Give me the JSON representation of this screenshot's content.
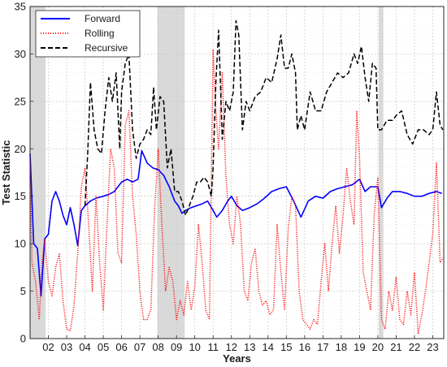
{
  "chart_data": {
    "type": "line",
    "title": "",
    "xlabel": "Years",
    "ylabel": "Test Statistic",
    "xlim": [
      2001.0,
      2023.6
    ],
    "ylim": [
      0,
      35
    ],
    "grid": true,
    "legend_position": "top-left",
    "x_ticks": [
      2002,
      2003,
      2004,
      2005,
      2006,
      2007,
      2008,
      2009,
      2010,
      2011,
      2012,
      2013,
      2014,
      2015,
      2016,
      2017,
      2018,
      2019,
      2020,
      2021,
      2022,
      2023
    ],
    "x_tick_labels": [
      "02",
      "03",
      "04",
      "05",
      "06",
      "07",
      "08",
      "09",
      "10",
      "11",
      "12",
      "13",
      "14",
      "15",
      "16",
      "17",
      "18",
      "19",
      "20",
      "21",
      "22",
      "23"
    ],
    "y_ticks": [
      0,
      5,
      10,
      15,
      20,
      25,
      30,
      35
    ],
    "y_tick_labels": [
      "0",
      "5",
      "10",
      "15",
      "20",
      "25",
      "30",
      "35"
    ],
    "shaded_periods": [
      [
        2001.0,
        2001.85
      ],
      [
        2007.95,
        2009.45
      ],
      [
        2020.05,
        2020.3
      ]
    ],
    "series": [
      {
        "name": "Forward",
        "color": "#0000ff",
        "style": "solid",
        "x": [
          2001.0,
          2001.2,
          2001.4,
          2001.6,
          2001.8,
          2002.0,
          2002.2,
          2002.4,
          2002.6,
          2002.8,
          2003.0,
          2003.2,
          2003.4,
          2003.6,
          2003.8,
          2004.0,
          2004.3,
          2004.6,
          2005.0,
          2005.3,
          2005.6,
          2006.0,
          2006.3,
          2006.6,
          2006.9,
          2007.1,
          2007.4,
          2007.7,
          2008.0,
          2008.3,
          2008.6,
          2008.9,
          2009.1,
          2009.3,
          2009.5,
          2009.8,
          2010.1,
          2010.4,
          2010.7,
          2011.0,
          2011.2,
          2011.5,
          2011.8,
          2012.0,
          2012.3,
          2012.6,
          2013.0,
          2013.4,
          2013.8,
          2014.2,
          2014.6,
          2015.0,
          2015.4,
          2015.8,
          2016.2,
          2016.6,
          2017.0,
          2017.4,
          2017.8,
          2018.2,
          2018.6,
          2019.0,
          2019.3,
          2019.6,
          2020.0,
          2020.2,
          2020.5,
          2020.8,
          2021.2,
          2021.6,
          2022.0,
          2022.4,
          2022.8,
          2023.2,
          2023.5
        ],
        "y": [
          19.5,
          10.0,
          9.5,
          4.5,
          10.5,
          11.0,
          14.5,
          15.5,
          14.5,
          13.0,
          12.0,
          13.8,
          12.0,
          9.8,
          13.5,
          14.0,
          14.5,
          14.8,
          15.0,
          15.2,
          15.5,
          16.5,
          16.8,
          16.5,
          16.8,
          19.8,
          18.5,
          18.0,
          17.8,
          17.2,
          16.0,
          14.5,
          14.0,
          13.2,
          13.5,
          13.8,
          14.0,
          14.2,
          14.5,
          13.5,
          12.8,
          13.5,
          14.5,
          15.0,
          14.0,
          13.5,
          13.8,
          14.2,
          14.8,
          15.5,
          15.8,
          16.0,
          14.5,
          12.8,
          14.5,
          15.0,
          14.8,
          15.5,
          15.8,
          16.0,
          16.2,
          16.8,
          15.5,
          16.0,
          16.0,
          13.8,
          14.8,
          15.5,
          15.5,
          15.3,
          15.0,
          15.0,
          15.3,
          15.5,
          15.3
        ]
      },
      {
        "name": "Rolling",
        "color": "#ff0000",
        "style": "dotted",
        "x": [
          2001.0,
          2001.1,
          2001.3,
          2001.5,
          2001.65,
          2001.8,
          2002.0,
          2002.2,
          2002.4,
          2002.6,
          2002.8,
          2003.0,
          2003.2,
          2003.4,
          2003.6,
          2003.8,
          2004.0,
          2004.2,
          2004.4,
          2004.6,
          2004.8,
          2005.0,
          2005.2,
          2005.4,
          2005.6,
          2005.8,
          2006.0,
          2006.2,
          2006.4,
          2006.6,
          2006.8,
          2007.0,
          2007.2,
          2007.4,
          2007.6,
          2007.8,
          2008.0,
          2008.2,
          2008.4,
          2008.6,
          2008.8,
          2009.0,
          2009.2,
          2009.4,
          2009.6,
          2009.8,
          2010.0,
          2010.2,
          2010.4,
          2010.6,
          2010.8,
          2011.0,
          2011.15,
          2011.3,
          2011.5,
          2011.7,
          2011.9,
          2012.1,
          2012.3,
          2012.5,
          2012.7,
          2012.9,
          2013.1,
          2013.3,
          2013.5,
          2013.7,
          2013.9,
          2014.1,
          2014.3,
          2014.5,
          2014.7,
          2014.9,
          2015.1,
          2015.3,
          2015.5,
          2015.7,
          2015.9,
          2016.1,
          2016.3,
          2016.5,
          2016.7,
          2016.9,
          2017.1,
          2017.3,
          2017.5,
          2017.7,
          2017.9,
          2018.1,
          2018.3,
          2018.5,
          2018.7,
          2018.85,
          2019.0,
          2019.2,
          2019.4,
          2019.6,
          2019.8,
          2020.0,
          2020.2,
          2020.4,
          2020.6,
          2020.8,
          2021.0,
          2021.2,
          2021.4,
          2021.6,
          2021.8,
          2022.0,
          2022.2,
          2022.4,
          2022.6,
          2022.8,
          2023.0,
          2023.2,
          2023.4,
          2023.55
        ],
        "y": [
          19.0,
          8.0,
          6.0,
          2.0,
          8.0,
          10.5,
          6.0,
          4.5,
          7.5,
          9.0,
          4.0,
          1.0,
          0.8,
          3.5,
          9.0,
          16.0,
          18.0,
          12.0,
          5.0,
          15.0,
          8.0,
          3.0,
          12.0,
          20.0,
          18.0,
          9.0,
          8.0,
          22.5,
          24.0,
          15.0,
          11.0,
          5.0,
          2.0,
          2.0,
          3.0,
          13.5,
          20.0,
          12.0,
          5.0,
          7.5,
          6.0,
          2.0,
          4.0,
          2.5,
          6.0,
          3.0,
          5.5,
          12.0,
          8.0,
          3.0,
          2.0,
          30.5,
          24.0,
          20.0,
          28.0,
          17.0,
          12.0,
          10.0,
          15.0,
          12.0,
          5.0,
          4.0,
          8.0,
          9.5,
          5.0,
          3.5,
          4.0,
          2.5,
          3.0,
          12.0,
          7.0,
          3.0,
          11.5,
          15.0,
          14.0,
          5.0,
          2.0,
          1.5,
          1.0,
          2.0,
          1.5,
          6.0,
          10.0,
          5.0,
          10.0,
          14.0,
          9.0,
          13.0,
          18.0,
          14.5,
          12.0,
          24.0,
          19.0,
          7.0,
          5.0,
          3.0,
          13.0,
          17.0,
          2.0,
          1.0,
          5.0,
          3.0,
          6.5,
          2.0,
          1.5,
          5.0,
          2.5,
          7.0,
          0.5,
          2.5,
          5.0,
          8.0,
          11.0,
          18.5,
          8.0,
          8.5
        ]
      },
      {
        "name": "Recursive",
        "color": "#000000",
        "style": "dashed",
        "x": [
          2004.0,
          2004.15,
          2004.3,
          2004.5,
          2004.7,
          2004.9,
          2005.1,
          2005.3,
          2005.5,
          2005.7,
          2005.9,
          2006.0,
          2006.2,
          2006.4,
          2006.6,
          2006.8,
          2007.0,
          2007.2,
          2007.4,
          2007.6,
          2007.75,
          2007.9,
          2008.1,
          2008.3,
          2008.5,
          2008.7,
          2008.9,
          2009.1,
          2009.3,
          2009.5,
          2009.7,
          2009.9,
          2010.1,
          2010.3,
          2010.5,
          2010.7,
          2010.9,
          2011.0,
          2011.15,
          2011.3,
          2011.5,
          2011.7,
          2011.9,
          2012.1,
          2012.25,
          2012.4,
          2012.6,
          2012.8,
          2013.0,
          2013.3,
          2013.6,
          2013.9,
          2014.2,
          2014.5,
          2014.7,
          2014.9,
          2015.1,
          2015.3,
          2015.5,
          2015.6,
          2015.8,
          2016.0,
          2016.3,
          2016.6,
          2016.9,
          2017.2,
          2017.5,
          2017.8,
          2018.1,
          2018.4,
          2018.7,
          2018.9,
          2019.1,
          2019.3,
          2019.5,
          2019.7,
          2019.9,
          2020.0,
          2020.2,
          2020.5,
          2020.8,
          2021.0,
          2021.3,
          2021.6,
          2021.9,
          2022.2,
          2022.5,
          2022.8,
          2023.0,
          2023.2,
          2023.4,
          2023.55
        ],
        "y": [
          14.0,
          19.5,
          27.0,
          22.0,
          20.0,
          19.5,
          24.0,
          27.5,
          25.0,
          28.0,
          20.0,
          26.0,
          29.0,
          30.0,
          22.0,
          19.0,
          20.5,
          21.0,
          22.0,
          21.5,
          26.5,
          22.0,
          25.5,
          25.0,
          18.0,
          20.0,
          15.5,
          15.5,
          14.5,
          13.0,
          14.0,
          15.0,
          16.5,
          16.5,
          17.0,
          16.5,
          15.0,
          18.0,
          27.0,
          32.5,
          21.0,
          25.0,
          24.0,
          26.0,
          33.5,
          32.0,
          22.0,
          25.0,
          24.0,
          25.5,
          26.0,
          27.5,
          27.0,
          29.5,
          32.0,
          28.5,
          28.5,
          30.0,
          28.0,
          22.0,
          23.5,
          22.0,
          26.0,
          24.0,
          24.0,
          26.0,
          27.0,
          28.0,
          27.5,
          28.0,
          30.0,
          29.0,
          30.8,
          27.5,
          25.0,
          29.0,
          28.5,
          22.0,
          22.0,
          23.0,
          23.0,
          23.5,
          24.0,
          21.5,
          20.5,
          22.0,
          22.0,
          21.5,
          22.0,
          26.0,
          22.5,
          22.0
        ]
      }
    ]
  }
}
